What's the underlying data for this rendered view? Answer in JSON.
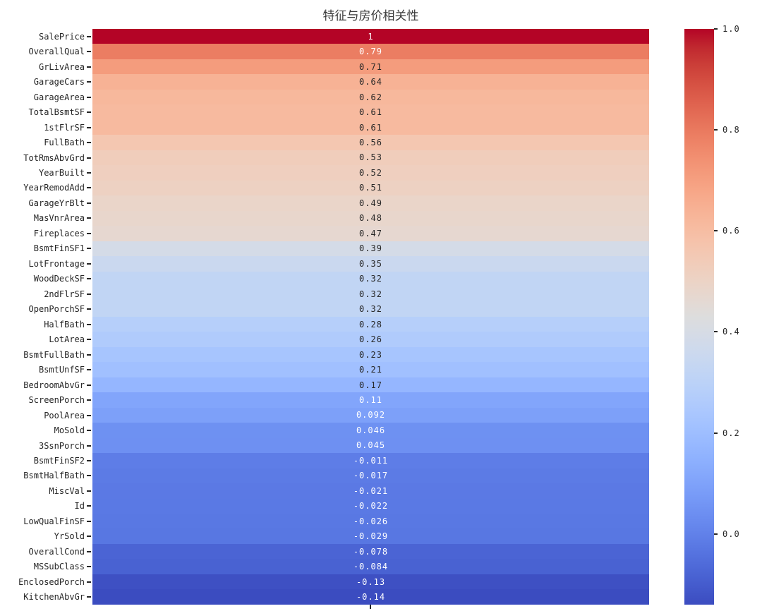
{
  "title": "特征与房价相关性",
  "chart_data": {
    "type": "heatmap",
    "orientation": "single-column",
    "colormap": "coolwarm",
    "vmin": -0.14,
    "vmax": 1.0,
    "grid": false,
    "categories": [
      "SalePrice",
      "OverallQual",
      "GrLivArea",
      "GarageCars",
      "GarageArea",
      "TotalBsmtSF",
      "1stFlrSF",
      "FullBath",
      "TotRmsAbvGrd",
      "YearBuilt",
      "YearRemodAdd",
      "GarageYrBlt",
      "MasVnrArea",
      "Fireplaces",
      "BsmtFinSF1",
      "LotFrontage",
      "WoodDeckSF",
      "2ndFlrSF",
      "OpenPorchSF",
      "HalfBath",
      "LotArea",
      "BsmtFullBath",
      "BsmtUnfSF",
      "BedroomAbvGr",
      "ScreenPorch",
      "PoolArea",
      "MoSold",
      "3SsnPorch",
      "BsmtFinSF2",
      "BsmtHalfBath",
      "MiscVal",
      "Id",
      "LowQualFinSF",
      "YrSold",
      "OverallCond",
      "MSSubClass",
      "EnclosedPorch",
      "KitchenAbvGr"
    ],
    "values": [
      1,
      0.79,
      0.71,
      0.64,
      0.62,
      0.61,
      0.61,
      0.56,
      0.53,
      0.52,
      0.51,
      0.49,
      0.48,
      0.47,
      0.39,
      0.35,
      0.32,
      0.32,
      0.32,
      0.28,
      0.26,
      0.23,
      0.21,
      0.17,
      0.11,
      0.092,
      0.046,
      0.045,
      -0.011,
      -0.017,
      -0.021,
      -0.022,
      -0.026,
      -0.029,
      -0.078,
      -0.084,
      -0.13,
      -0.14
    ],
    "value_labels": [
      "1",
      "0.79",
      "0.71",
      "0.64",
      "0.62",
      "0.61",
      "0.61",
      "0.56",
      "0.53",
      "0.52",
      "0.51",
      "0.49",
      "0.48",
      "0.47",
      "0.39",
      "0.35",
      "0.32",
      "0.32",
      "0.32",
      "0.28",
      "0.26",
      "0.23",
      "0.21",
      "0.17",
      "0.11",
      "0.092",
      "0.046",
      "0.045",
      "-0.011",
      "-0.017",
      "-0.021",
      "-0.022",
      "-0.026",
      "-0.029",
      "-0.078",
      "-0.084",
      "-0.13",
      "-0.14"
    ],
    "colorbar": {
      "position": "right",
      "tick_labels": [
        "1.0",
        "0.8",
        "0.6",
        "0.4",
        "0.2",
        "0.0"
      ],
      "tick_values": [
        1.0,
        0.8,
        0.6,
        0.4,
        0.2,
        0.0
      ]
    }
  },
  "colors": {
    "background": "#ffffff",
    "axis_text": "#262626",
    "title_text": "#3b3b3b",
    "annotation_dark": "#262626",
    "annotation_light": "#ffffff",
    "cmap_low": "#3b4cc0",
    "cmap_mid": "#dddddd",
    "cmap_high": "#b40426"
  }
}
